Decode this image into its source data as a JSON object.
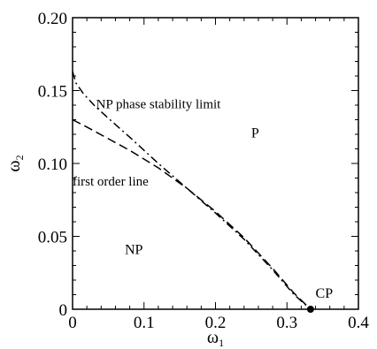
{
  "chart_data": {
    "type": "line",
    "title": "",
    "xlabel": "ω",
    "xlabel_sub": "1",
    "ylabel": "ω",
    "ylabel_sub": "2",
    "xlim": [
      0,
      0.4
    ],
    "ylim": [
      0,
      0.2
    ],
    "xticks": [
      0,
      0.1,
      0.2,
      0.3,
      0.4
    ],
    "xtick_labels": [
      "0",
      "0.1",
      "0.2",
      "0.3",
      "0.4"
    ],
    "yticks": [
      0,
      0.05,
      0.1,
      0.15,
      0.2
    ],
    "ytick_labels": [
      "0",
      "0.05",
      "0.10",
      "0.15",
      "0.20"
    ],
    "grid": false,
    "series": [
      {
        "style": "dash-dot",
        "x": [
          0,
          0.005,
          0.015,
          0.03,
          0.05,
          0.08,
          0.12,
          0.16,
          0.2,
          0.24,
          0.28,
          0.31,
          0.333
        ],
        "y": [
          0.163,
          0.155,
          0.148,
          0.14,
          0.131,
          0.118,
          0.1,
          0.083,
          0.066,
          0.048,
          0.027,
          0.01,
          0.0
        ]
      },
      {
        "style": "dashed",
        "x": [
          0,
          0.02,
          0.05,
          0.08,
          0.12,
          0.16,
          0.2,
          0.24,
          0.28,
          0.31,
          0.333
        ],
        "y": [
          0.13,
          0.125,
          0.117,
          0.109,
          0.097,
          0.083,
          0.067,
          0.049,
          0.028,
          0.011,
          0.0
        ]
      }
    ],
    "points": [
      {
        "label": "CP",
        "x": 0.333,
        "y": 0.0
      }
    ],
    "annotations": [
      {
        "text": "NP phase stability limit",
        "x": 0.033,
        "y": 0.138
      },
      {
        "text": "P",
        "x": 0.25,
        "y": 0.118
      },
      {
        "text": "first order line",
        "x": 0.0,
        "y": 0.085
      },
      {
        "text": "NP",
        "x": 0.073,
        "y": 0.038
      },
      {
        "text": "CP",
        "x": 0.34,
        "y": 0.008
      }
    ]
  }
}
